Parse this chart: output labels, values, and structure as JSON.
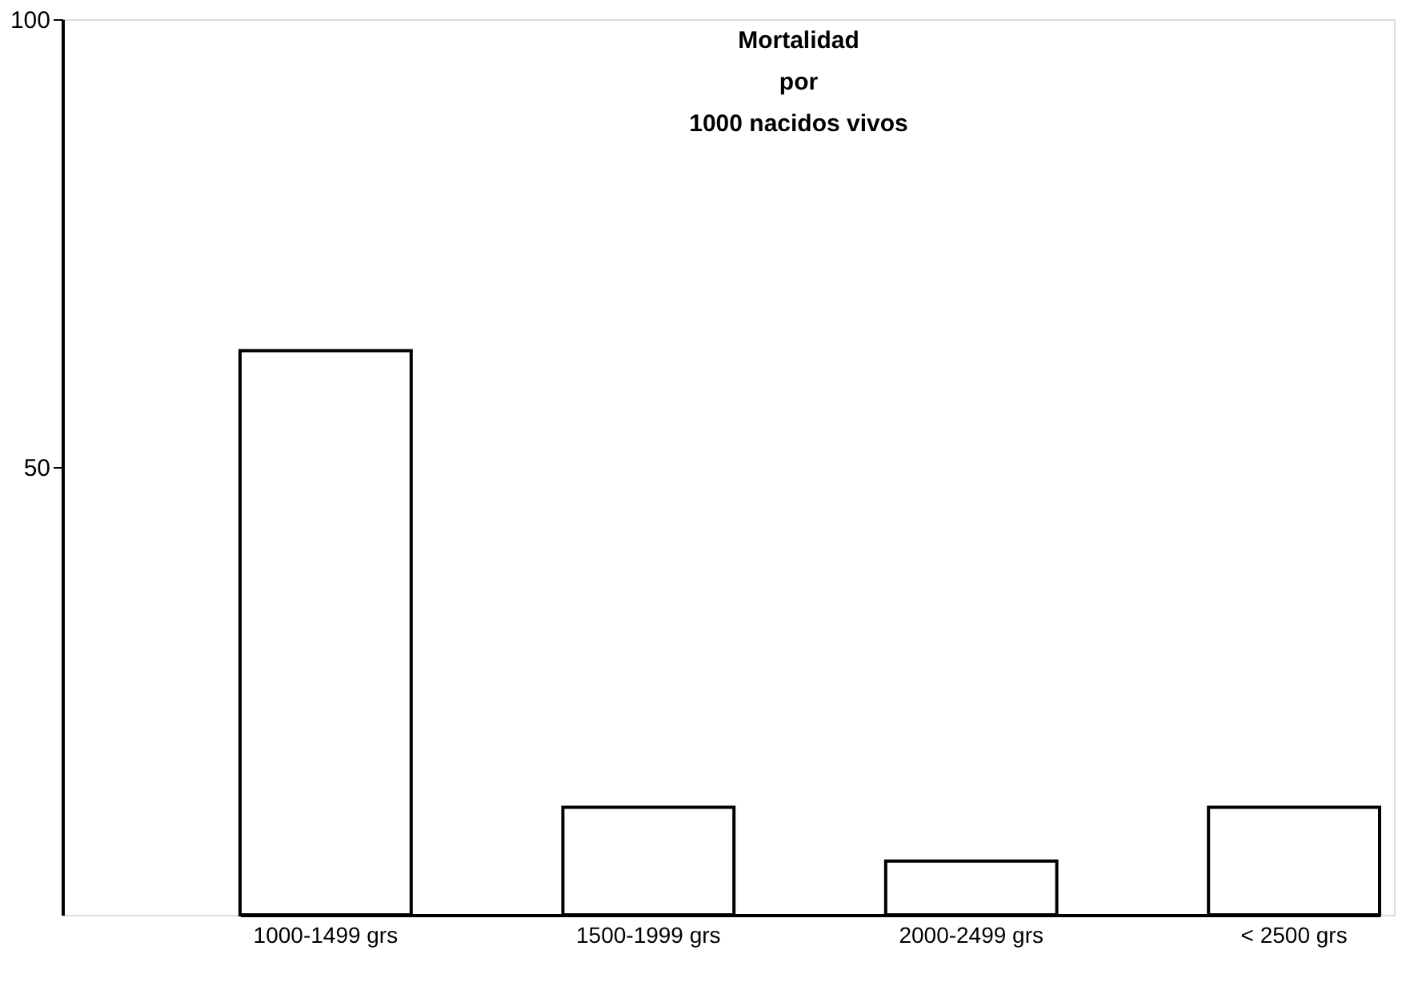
{
  "chart_data": {
    "type": "bar",
    "title": "Mortalidad\npor\n1000 nacidos vivos",
    "categories": [
      "1000-1499 grs",
      "1500-1999 grs",
      "2000-2499 grs",
      "< 2500 grs"
    ],
    "values": [
      63,
      12,
      6,
      12
    ],
    "color": "#ffffff",
    "ylim": [
      0,
      100
    ],
    "yticks": [
      50,
      100
    ],
    "grid": false
  }
}
